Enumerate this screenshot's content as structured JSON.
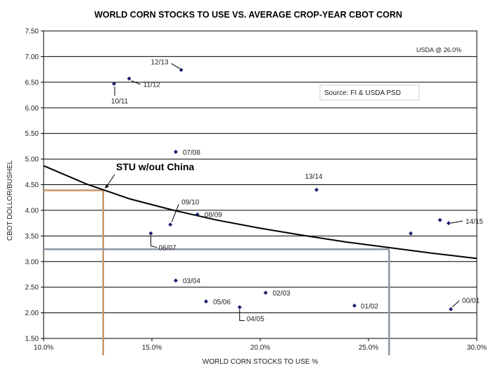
{
  "chart_data": {
    "type": "scatter",
    "title": "WORLD CORN STOCKS TO USE VS. AVERAGE CROP-YEAR CBOT CORN",
    "xlabel": "WORLD CORN STOCKS TO USE %",
    "ylabel": "CBOT DOLLOR/BUSHEL",
    "xlim": [
      0.1,
      0.3
    ],
    "ylim": [
      1.5,
      7.5
    ],
    "x_ticks": [
      0.1,
      0.15,
      0.2,
      0.25,
      0.3
    ],
    "x_tick_labels": [
      "10.0%",
      "15.0%",
      "20.0%",
      "25.0%",
      "30.0%"
    ],
    "y_ticks": [
      1.5,
      2.0,
      2.5,
      3.0,
      3.5,
      4.0,
      4.5,
      5.0,
      5.5,
      6.0,
      6.5,
      7.0,
      7.5
    ],
    "y_tick_labels": [
      "1.50",
      "2.00",
      "2.50",
      "3.00",
      "3.50",
      "4.00",
      "4.50",
      "5.00",
      "5.50",
      "6.00",
      "6.50",
      "7.00",
      "7.50"
    ],
    "grid": "horizontal",
    "points": [
      {
        "x": 0.1635,
        "y": 6.74,
        "label": "12/13"
      },
      {
        "x": 0.1395,
        "y": 6.57,
        "label": "11/12"
      },
      {
        "x": 0.1325,
        "y": 6.47,
        "label": "10/11"
      },
      {
        "x": 0.161,
        "y": 5.14,
        "label": "07/08"
      },
      {
        "x": 0.226,
        "y": 4.4,
        "label": "13/14"
      },
      {
        "x": 0.1585,
        "y": 3.72,
        "label": "09/10"
      },
      {
        "x": 0.171,
        "y": 3.92,
        "label": "08/09"
      },
      {
        "x": 0.1495,
        "y": 3.55,
        "label": "06/07"
      },
      {
        "x": 0.287,
        "y": 3.75,
        "label": "14/15"
      },
      {
        "x": 0.283,
        "y": 3.81,
        "label": ""
      },
      {
        "x": 0.2695,
        "y": 3.55,
        "label": ""
      },
      {
        "x": 0.161,
        "y": 2.63,
        "label": "03/04"
      },
      {
        "x": 0.2025,
        "y": 2.39,
        "label": "02/03"
      },
      {
        "x": 0.175,
        "y": 2.22,
        "label": "05/06"
      },
      {
        "x": 0.1905,
        "y": 2.11,
        "label": "04/05"
      },
      {
        "x": 0.2435,
        "y": 2.14,
        "label": "01/02"
      },
      {
        "x": 0.288,
        "y": 2.07,
        "label": "00/01"
      }
    ],
    "trendline": {
      "x": [
        0.1,
        0.12,
        0.14,
        0.16,
        0.18,
        0.2,
        0.22,
        0.24,
        0.26,
        0.28,
        0.3
      ],
      "y": [
        4.87,
        4.51,
        4.22,
        4.0,
        3.81,
        3.65,
        3.51,
        3.38,
        3.27,
        3.16,
        3.06
      ]
    },
    "reference_lines": [
      {
        "name": "stu_without_china",
        "color": "#c8956a",
        "x": 0.1275,
        "y": 4.39
      },
      {
        "name": "usda",
        "color": "#8c96a6",
        "x": 0.2595,
        "y": 3.24
      }
    ],
    "annotations": {
      "stu_without_china": "STU w/out China",
      "usda_note": "USDA @   26.0%",
      "source": "Source:  FI & USDA PSD"
    }
  }
}
